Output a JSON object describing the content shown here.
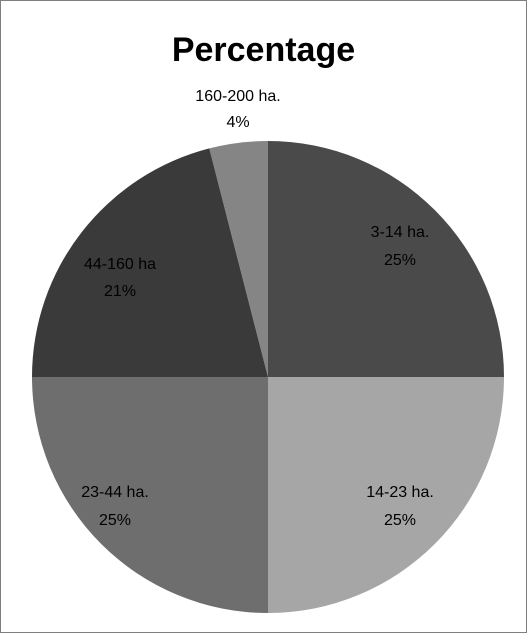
{
  "chart_data": {
    "type": "pie",
    "title": "Percentage",
    "slices": [
      {
        "label": "3-14 ha.",
        "value": 25,
        "value_label": "25%",
        "color": "#4a4a4a"
      },
      {
        "label": "14-23 ha.",
        "value": 25,
        "value_label": "25%",
        "color": "#a6a6a6"
      },
      {
        "label": "23-44 ha.",
        "value": 25,
        "value_label": "25%",
        "color": "#6e6e6e"
      },
      {
        "label": "44-160 ha",
        "value": 21,
        "value_label": "21%",
        "color": "#3a3a3a"
      },
      {
        "label": "160-200 ha.",
        "value": 4,
        "value_label": "4%",
        "color": "#858585"
      }
    ],
    "start_angle": "12 o'clock",
    "direction": "clockwise",
    "legend": "none"
  }
}
